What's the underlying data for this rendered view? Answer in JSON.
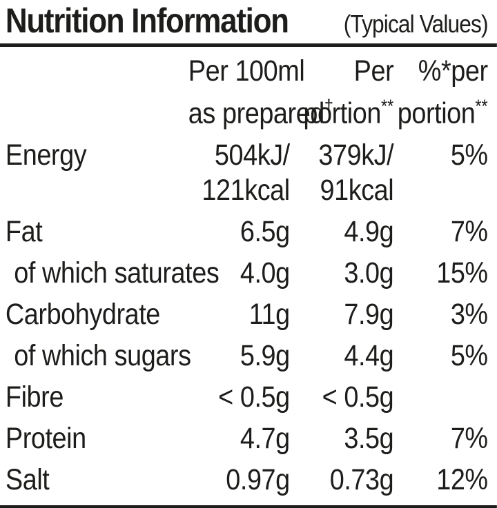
{
  "title": {
    "main": "Nutrition Information",
    "sub": "(Typical Values)"
  },
  "colors": {
    "text": "#1d1d1b",
    "background": "#ffffff",
    "rule": "#1d1d1b"
  },
  "header": {
    "col1": {
      "line1": "Per 100ml",
      "line2": "as prepared",
      "mark": "†"
    },
    "col2": {
      "line1": "Per",
      "line2": "portion",
      "mark": "**"
    },
    "col3": {
      "line1": "%*per",
      "line2": "portion",
      "mark": "**"
    }
  },
  "rows": [
    {
      "label": "Energy",
      "indent": false,
      "per_100ml": [
        "504kJ/",
        "121kcal"
      ],
      "per_portion": [
        "379kJ/",
        "91kcal"
      ],
      "percent_per_portion": [
        "5%"
      ]
    },
    {
      "label": "Fat",
      "indent": false,
      "per_100ml": [
        "6.5g"
      ],
      "per_portion": [
        "4.9g"
      ],
      "percent_per_portion": [
        "7%"
      ]
    },
    {
      "label": "of which saturates",
      "indent": true,
      "per_100ml": [
        "4.0g"
      ],
      "per_portion": [
        "3.0g"
      ],
      "percent_per_portion": [
        "15%"
      ]
    },
    {
      "label": "Carbohydrate",
      "indent": false,
      "per_100ml": [
        "11g"
      ],
      "per_portion": [
        "7.9g"
      ],
      "percent_per_portion": [
        "3%"
      ]
    },
    {
      "label": "of which sugars",
      "indent": true,
      "per_100ml": [
        "5.9g"
      ],
      "per_portion": [
        "4.4g"
      ],
      "percent_per_portion": [
        "5%"
      ]
    },
    {
      "label": "Fibre",
      "indent": false,
      "per_100ml": [
        "< 0.5g"
      ],
      "per_portion": [
        "< 0.5g"
      ],
      "percent_per_portion": [
        ""
      ]
    },
    {
      "label": "Protein",
      "indent": false,
      "per_100ml": [
        "4.7g"
      ],
      "per_portion": [
        "3.5g"
      ],
      "percent_per_portion": [
        "7%"
      ]
    },
    {
      "label": "Salt",
      "indent": false,
      "per_100ml": [
        "0.97g"
      ],
      "per_portion": [
        "0.73g"
      ],
      "percent_per_portion": [
        "12%"
      ]
    }
  ]
}
